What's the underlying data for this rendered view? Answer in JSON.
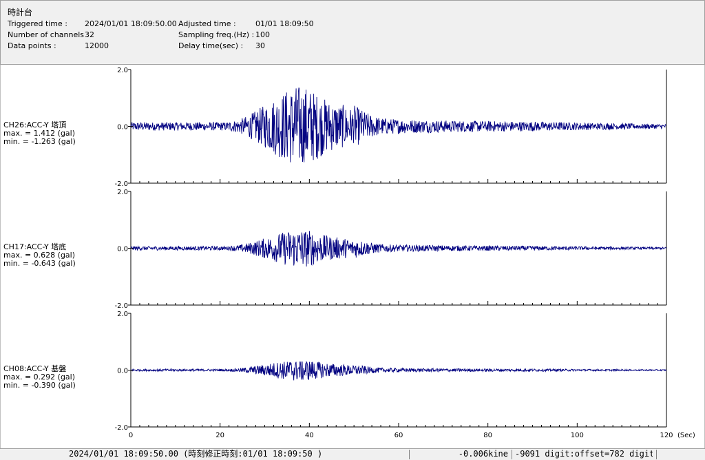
{
  "header": {
    "title": "時計台",
    "triggered_label": "Triggered time :",
    "triggered_value": "2024/01/01 18:09:50.00",
    "channels_label": "Number of channels :",
    "channels_value": "32",
    "datapoints_label": "Data points :",
    "datapoints_value": "12000",
    "adjusted_label": "Adjusted time :",
    "adjusted_value": "01/01 18:09:50",
    "sampling_label": "Sampling freq.(Hz) :",
    "sampling_value": "100",
    "delay_label": "Delay time(sec) :",
    "delay_value": "30"
  },
  "chart_data": {
    "type": "line",
    "x_unit_label": "(Sec)",
    "xlim": [
      0,
      120
    ],
    "x_ticks": [
      0,
      20,
      40,
      60,
      80,
      100,
      120
    ],
    "ylim": [
      -2.0,
      2.0
    ],
    "y_tick_labels": [
      "2.0",
      "0.0",
      "-2.0"
    ],
    "grid": false,
    "line_color": "#000080",
    "series": [
      {
        "name": "CH26:ACC-Y 塔頂",
        "max_text": "max. = 1.412 (gal)",
        "min_text": "min. = -1.263 (gal)",
        "max": 1.412,
        "min": -1.263
      },
      {
        "name": "CH17:ACC-Y 塔底",
        "max_text": "max. = 0.628 (gal)",
        "min_text": "min. = -0.643 (gal)",
        "max": 0.628,
        "min": -0.643
      },
      {
        "name": "CH08:ACC-Y 基盤",
        "max_text": "max. = 0.292 (gal)",
        "min_text": "min. = -0.390 (gal)",
        "max": 0.292,
        "min": -0.39
      }
    ]
  },
  "status": {
    "time": "2024/01/01 18:09:50.00  (時刻修正時刻:01/01 18:09:50  )",
    "velocity": "-0.006kine",
    "digit": "-9091 digit:offset=782 digit"
  }
}
